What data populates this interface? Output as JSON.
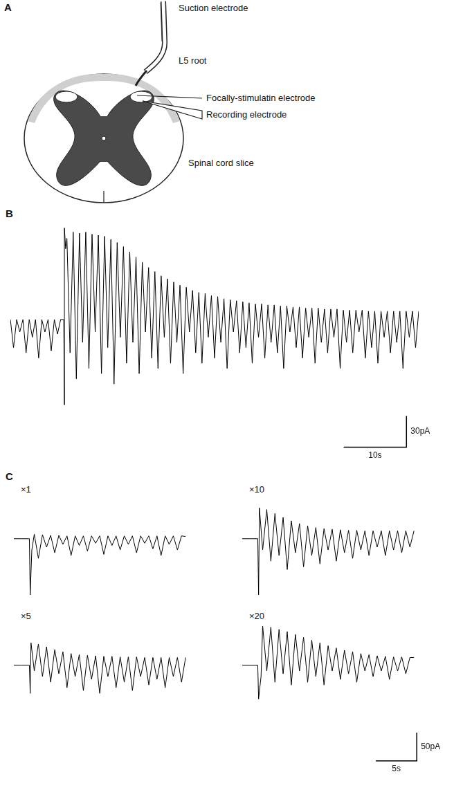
{
  "diagram": {
    "panel": "A",
    "labels": [
      "Suction electrode",
      "L5 root",
      "Focally-stimulatin electrode",
      "Recording electrode",
      "Spinal cord slice"
    ]
  },
  "chart_data": [
    {
      "panel": "B",
      "type": "line",
      "color": "#000000",
      "grid": false,
      "tick_labels": false,
      "xlim": [
        0,
        65
      ],
      "ylim": [
        -125,
        95
      ],
      "scale_bar": {
        "x": 10,
        "x_label": "10s",
        "y": 30,
        "y_label": "30pA"
      },
      "x": [
        0,
        0.5,
        1,
        1.5,
        2,
        2.5,
        3,
        3.5,
        4,
        4.5,
        5,
        5.5,
        6,
        6.5,
        7,
        7.5,
        8,
        8.5,
        8.6,
        8.6,
        8.8,
        9,
        9.5,
        10,
        10.5,
        11,
        11.5,
        12,
        12.5,
        13,
        13.5,
        14,
        14.5,
        15,
        15.5,
        16,
        16.5,
        17,
        17.5,
        18,
        18.5,
        19,
        19.5,
        20,
        20.5,
        21,
        21.5,
        22,
        22.5,
        23,
        23.5,
        24,
        24.5,
        25,
        25.5,
        26,
        26.5,
        27,
        27.5,
        28,
        28.5,
        29,
        29.5,
        30,
        30.5,
        31,
        31.5,
        32,
        32.5,
        33,
        33.5,
        34,
        34.5,
        35,
        35.5,
        36,
        36.5,
        37,
        37.5,
        38,
        38.5,
        39,
        39.5,
        40,
        40.5,
        41,
        41.5,
        42,
        42.5,
        43,
        43.5,
        44,
        44.5,
        45,
        45.5,
        46,
        46.5,
        47,
        47.5,
        48,
        48.5,
        49,
        49.5,
        50,
        50.5,
        51,
        51.5,
        52,
        52.5,
        53,
        53.5,
        54,
        54.5,
        55,
        55.5,
        56,
        56.5,
        57,
        57.5,
        58,
        58.5,
        59,
        59.5,
        60,
        60.5,
        61,
        61.5,
        62,
        62.5,
        63,
        63.5,
        64,
        64.5,
        65
      ],
      "values": [
        2,
        -25,
        2,
        -10,
        2,
        -30,
        2,
        -15,
        2,
        -35,
        2,
        -10,
        2,
        -28,
        2,
        -12,
        2,
        2,
        -80,
        90,
        70,
        80,
        -30,
        86,
        -55,
        85,
        -20,
        86,
        -45,
        84,
        -10,
        83,
        -50,
        82,
        -25,
        79,
        -60,
        76,
        -15,
        72,
        -40,
        67,
        -20,
        62,
        -50,
        57,
        -10,
        52,
        -35,
        48,
        -45,
        44,
        -15,
        41,
        -40,
        38,
        -20,
        35,
        -50,
        33,
        -10,
        30,
        -30,
        28,
        -40,
        27,
        -15,
        25,
        -35,
        24,
        -20,
        22,
        -45,
        21,
        -10,
        20,
        -30,
        19,
        -25,
        18,
        -40,
        17,
        -15,
        17,
        -35,
        16,
        -20,
        16,
        -30,
        15,
        -45,
        15,
        -10,
        14,
        -25,
        14,
        -35,
        13,
        -15,
        13,
        -40,
        13,
        -20,
        12,
        -30,
        12,
        -15,
        12,
        -45,
        11,
        -20,
        11,
        -30,
        11,
        -10,
        11,
        -35,
        10,
        -25,
        10,
        -40,
        10,
        -15,
        10,
        -30,
        10,
        -20,
        10,
        -45,
        10,
        -15,
        10,
        -25,
        10
      ]
    },
    {
      "panel": "C",
      "title": "×1",
      "type": "line",
      "color": "#000000",
      "grid": false,
      "tick_labels": false,
      "xlim": [
        0,
        22
      ],
      "ylim": [
        -110,
        75
      ],
      "x": [
        0,
        1,
        1.9,
        2,
        2.2,
        2.5,
        3,
        3.5,
        4,
        4.5,
        5,
        5.5,
        6,
        6.5,
        7,
        7.5,
        8,
        8.5,
        9,
        9.5,
        10,
        10.5,
        11,
        11.5,
        12,
        12.5,
        13,
        13.5,
        14,
        14.5,
        15,
        15.5,
        16,
        16.5,
        17,
        17.5,
        18,
        18.5,
        19,
        19.5,
        20,
        20.5,
        21
      ],
      "values": [
        0,
        0,
        0,
        -100,
        -20,
        8,
        -35,
        7,
        -15,
        6,
        -25,
        6,
        -10,
        5,
        -30,
        5,
        -12,
        5,
        -22,
        5,
        -8,
        5,
        -28,
        5,
        -12,
        5,
        -20,
        5,
        -10,
        5,
        -25,
        5,
        -8,
        5,
        -18,
        5,
        -30,
        5,
        -10,
        5,
        -20,
        5,
        4
      ]
    },
    {
      "title": "×5",
      "type": "line",
      "color": "#000000",
      "grid": false,
      "tick_labels": false,
      "xlim": [
        0,
        22
      ],
      "ylim": [
        -110,
        75
      ],
      "x": [
        0,
        1,
        1.9,
        2,
        2.1,
        2.5,
        3,
        3.5,
        4,
        4.5,
        5,
        5.5,
        6,
        6.5,
        7,
        7.5,
        8,
        8.5,
        9,
        9.5,
        10,
        10.5,
        11,
        11.5,
        12,
        12.5,
        13,
        13.5,
        14,
        14.5,
        15,
        15.5,
        16,
        16.5,
        17,
        17.5,
        18,
        18.5,
        19,
        19.5,
        20,
        20.5,
        21
      ],
      "values": [
        0,
        0,
        0,
        -50,
        40,
        -10,
        38,
        -20,
        33,
        -30,
        28,
        -15,
        24,
        -40,
        21,
        -20,
        19,
        -45,
        18,
        -25,
        17,
        -50,
        16,
        -20,
        16,
        -40,
        15,
        -30,
        15,
        -45,
        15,
        -20,
        14,
        -35,
        14,
        -25,
        14,
        -40,
        14,
        -20,
        14,
        -30,
        14
      ]
    },
    {
      "title": "×10",
      "type": "line",
      "color": "#000000",
      "grid": false,
      "tick_labels": false,
      "xlim": [
        0,
        22
      ],
      "ylim": [
        -110,
        75
      ],
      "x": [
        0,
        1,
        1.9,
        2,
        2.1,
        2.5,
        3,
        3.5,
        4,
        4.5,
        5,
        5.5,
        6,
        6.5,
        7,
        7.5,
        8,
        8.5,
        9,
        9.5,
        10,
        10.5,
        11,
        11.5,
        12,
        12.5,
        13,
        13.5,
        14,
        14.5,
        15,
        15.5,
        16,
        16.5,
        17,
        17.5,
        18,
        18.5,
        19,
        19.5,
        20,
        20.5,
        21
      ],
      "values": [
        0,
        0,
        0,
        -100,
        55,
        -20,
        52,
        -40,
        45,
        -30,
        38,
        -55,
        32,
        -25,
        27,
        -50,
        23,
        -30,
        20,
        -45,
        18,
        -20,
        17,
        -40,
        16,
        -25,
        15,
        -35,
        15,
        -20,
        14,
        -30,
        14,
        -15,
        14,
        -30,
        14,
        -20,
        14,
        -25,
        14,
        -15,
        14
      ]
    },
    {
      "title": "×20",
      "type": "line",
      "color": "#000000",
      "grid": false,
      "tick_labels": false,
      "xlim": [
        0,
        22
      ],
      "ylim": [
        -175,
        75
      ],
      "scale_bar": {
        "x": 5,
        "x_label": "5s",
        "y": 50,
        "y_label": "50pA"
      },
      "x": [
        0,
        1,
        1.9,
        2,
        2.3,
        2.5,
        3,
        3.5,
        4,
        4.5,
        5,
        5.5,
        6,
        6.5,
        7,
        7.5,
        8,
        8.5,
        9,
        9.5,
        10,
        10.5,
        11,
        11.5,
        12,
        12.5,
        13,
        13.5,
        14,
        14.5,
        15,
        15.5,
        16,
        16.5,
        17,
        17.5,
        18,
        18.5,
        19,
        19.5,
        20,
        20.5,
        21
      ],
      "values": [
        0,
        0,
        0,
        -60,
        -20,
        70,
        -10,
        68,
        -30,
        64,
        -15,
        60,
        -35,
        55,
        -10,
        50,
        -30,
        45,
        -20,
        40,
        -35,
        35,
        -10,
        31,
        -25,
        27,
        -15,
        24,
        -30,
        21,
        -10,
        19,
        -20,
        17,
        -10,
        16,
        -25,
        15,
        -10,
        15,
        -15,
        14,
        14
      ]
    }
  ]
}
